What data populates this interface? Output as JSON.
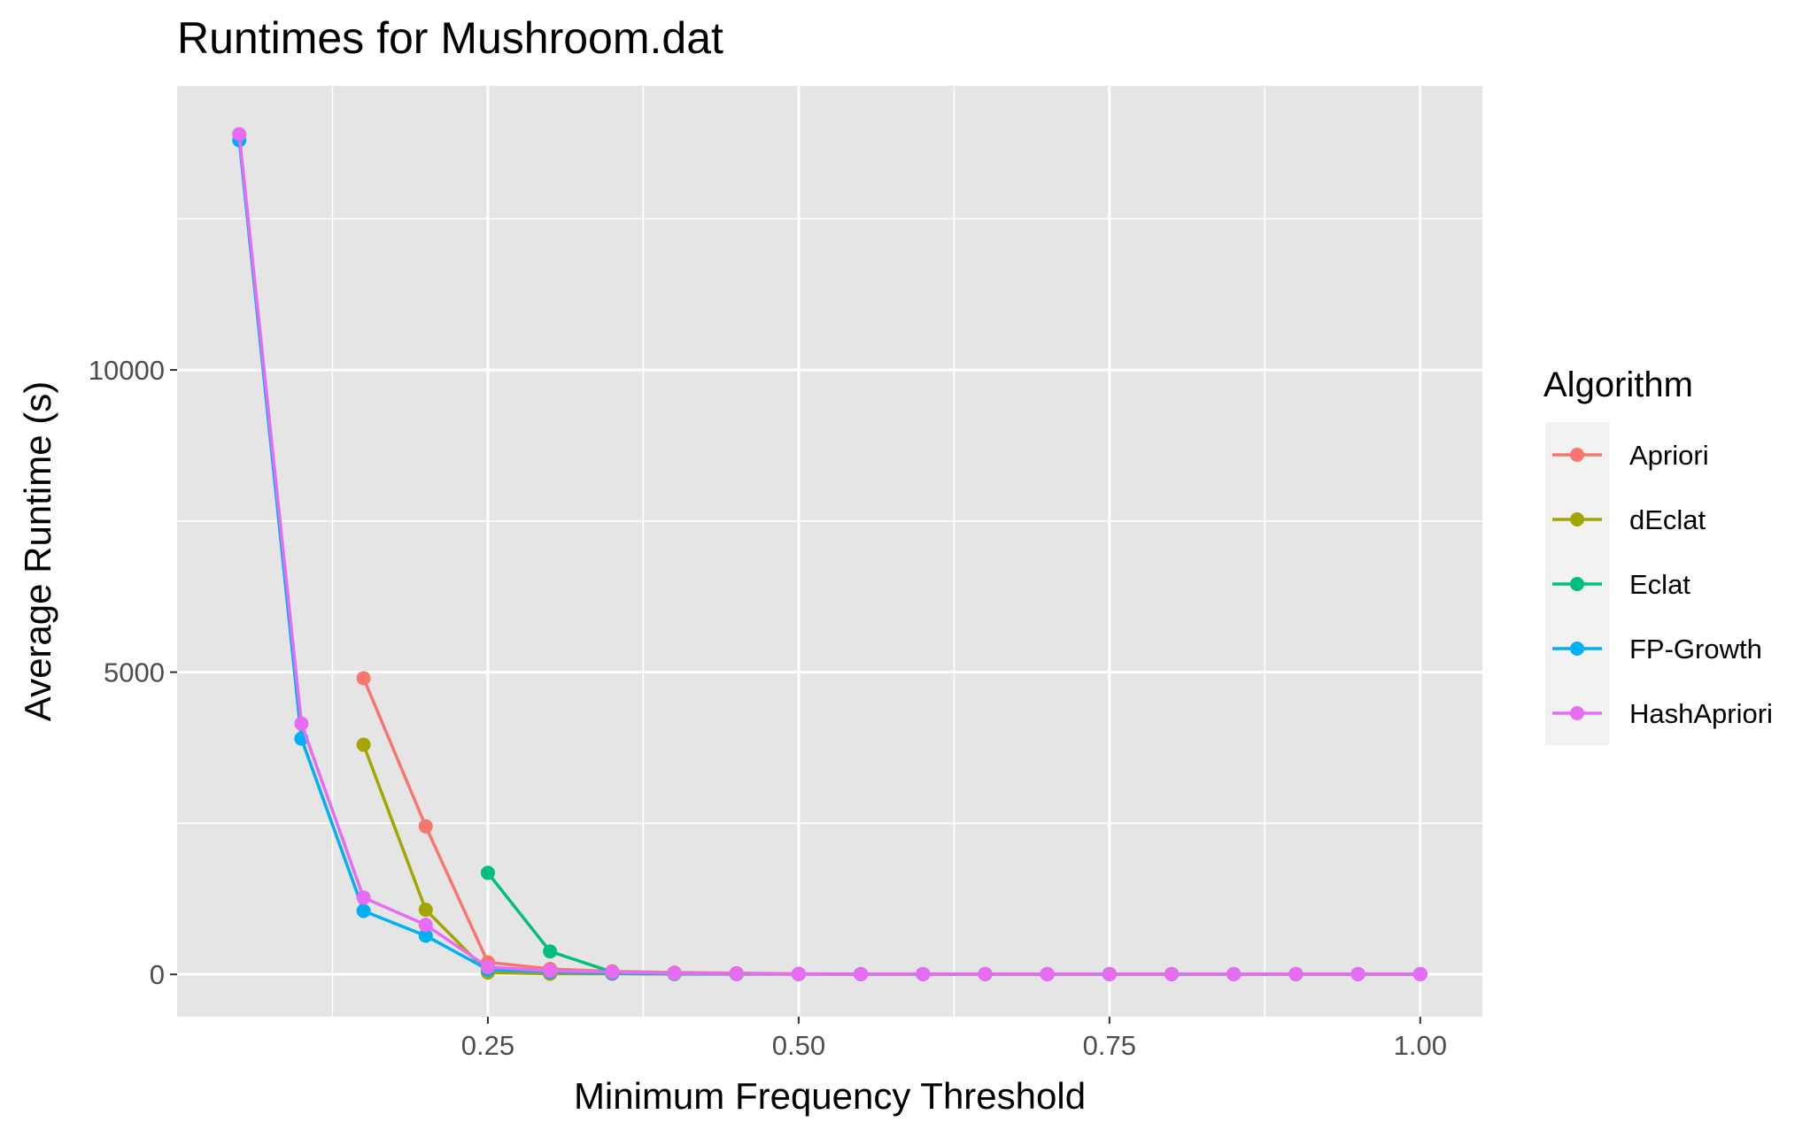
{
  "chart_data": {
    "type": "line",
    "title": "Runtimes for Mushroom.dat",
    "xlabel": "Minimum Frequency Threshold",
    "ylabel": "Average Runtime (s)",
    "xlim": [
      0.0,
      1.05
    ],
    "ylim": [
      -700,
      14700
    ],
    "x_ticks": [
      0.25,
      0.5,
      0.75,
      1.0
    ],
    "x_tick_labels": [
      "0.25",
      "0.50",
      "0.75",
      "1.00"
    ],
    "y_ticks": [
      0,
      5000,
      10000
    ],
    "y_tick_labels": [
      "0",
      "5000",
      "10000"
    ],
    "grid": true,
    "legend": {
      "title": "Algorithm",
      "position": "right"
    },
    "series": [
      {
        "name": "Apriori",
        "color": "#F8766D",
        "x": [
          0.15,
          0.2,
          0.25,
          0.3,
          0.35,
          0.4,
          0.45,
          0.5,
          0.55,
          0.6,
          0.65,
          0.7,
          0.75,
          0.8,
          0.85,
          0.9,
          0.95,
          1.0
        ],
        "y": [
          4900,
          2450,
          200,
          90,
          50,
          30,
          20,
          10,
          5,
          5,
          5,
          5,
          5,
          5,
          5,
          5,
          5,
          5
        ]
      },
      {
        "name": "dEclat",
        "color": "#A3A500",
        "x": [
          0.15,
          0.2,
          0.25,
          0.3,
          0.35,
          0.4,
          0.45,
          0.5,
          0.55,
          0.6,
          0.65,
          0.7,
          0.75,
          0.8,
          0.85,
          0.9,
          0.95,
          1.0
        ],
        "y": [
          3800,
          1070,
          30,
          10,
          10,
          5,
          5,
          5,
          5,
          5,
          5,
          5,
          5,
          5,
          5,
          5,
          5,
          5
        ]
      },
      {
        "name": "Eclat",
        "color": "#00BF7D",
        "x": [
          0.25,
          0.3,
          0.35,
          0.4,
          0.45,
          0.5,
          0.55,
          0.6,
          0.65,
          0.7,
          0.75,
          0.8,
          0.85,
          0.9,
          0.95,
          1.0
        ],
        "y": [
          1680,
          380,
          40,
          20,
          10,
          5,
          5,
          5,
          5,
          5,
          5,
          5,
          5,
          5,
          5,
          5
        ]
      },
      {
        "name": "FP-Growth",
        "color": "#00B0F6",
        "x": [
          0.05,
          0.1,
          0.15,
          0.2,
          0.25,
          0.3,
          0.35,
          0.4,
          0.45,
          0.5,
          0.55,
          0.6,
          0.65,
          0.7,
          0.75,
          0.8,
          0.85,
          0.9,
          0.95,
          1.0
        ],
        "y": [
          13800,
          3900,
          1050,
          640,
          80,
          40,
          20,
          10,
          5,
          5,
          5,
          5,
          5,
          5,
          5,
          5,
          5,
          5,
          5,
          5
        ]
      },
      {
        "name": "HashApriori",
        "color": "#E76BF3",
        "x": [
          0.05,
          0.1,
          0.15,
          0.2,
          0.25,
          0.3,
          0.35,
          0.4,
          0.45,
          0.5,
          0.55,
          0.6,
          0.65,
          0.7,
          0.75,
          0.8,
          0.85,
          0.9,
          0.95,
          1.0
        ],
        "y": [
          13900,
          4150,
          1270,
          820,
          120,
          60,
          40,
          20,
          10,
          5,
          5,
          5,
          5,
          5,
          5,
          5,
          5,
          5,
          5,
          5
        ]
      }
    ]
  },
  "colors": {
    "panel_background": "#E5E5E5",
    "grid_line": "#FFFFFF",
    "tick_text": "#4D4D4D",
    "tick_mark": "#333333"
  }
}
